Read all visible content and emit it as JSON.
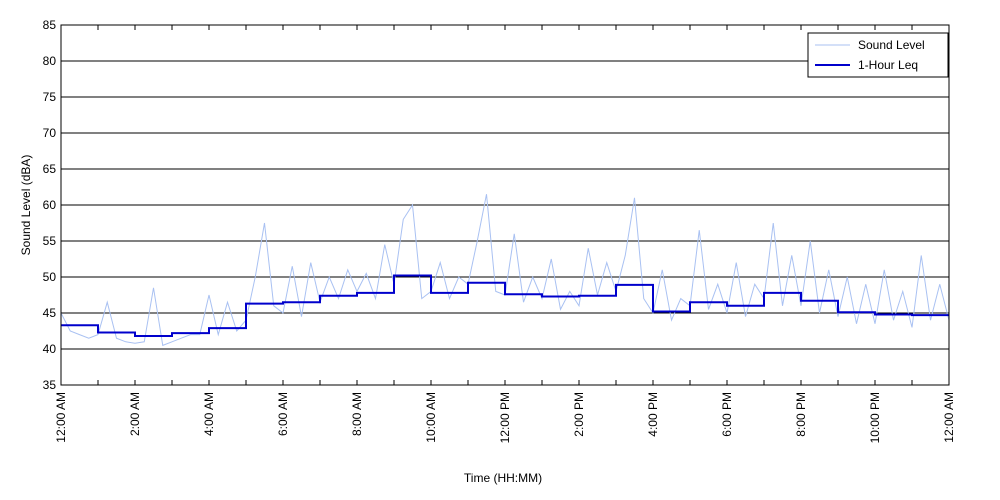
{
  "chart_data": {
    "type": "line",
    "xlabel": "Time (HH:MM)",
    "ylabel": "Sound Level (dBA)",
    "xlim": [
      0,
      24
    ],
    "ylim": [
      35,
      85
    ],
    "xticks": [
      {
        "value": 0,
        "label": "12:00 AM"
      },
      {
        "value": 2,
        "label": "2:00 AM"
      },
      {
        "value": 4,
        "label": "4:00 AM"
      },
      {
        "value": 6,
        "label": "6:00 AM"
      },
      {
        "value": 8,
        "label": "8:00 AM"
      },
      {
        "value": 10,
        "label": "10:00 AM"
      },
      {
        "value": 12,
        "label": "12:00 PM"
      },
      {
        "value": 14,
        "label": "2:00 PM"
      },
      {
        "value": 16,
        "label": "4:00 PM"
      },
      {
        "value": 18,
        "label": "6:00 PM"
      },
      {
        "value": 20,
        "label": "8:00 PM"
      },
      {
        "value": 22,
        "label": "10:00 PM"
      },
      {
        "value": 24,
        "label": "12:00 AM"
      }
    ],
    "x_minor_ticks": [
      1,
      3,
      5,
      7,
      9,
      11,
      13,
      15,
      17,
      19,
      21,
      23
    ],
    "yticks": [
      35,
      40,
      45,
      50,
      55,
      60,
      65,
      70,
      75,
      80,
      85
    ],
    "grid": "y",
    "legend": "upper right",
    "series": [
      {
        "name": "Sound Level",
        "color": "#a9c1f2",
        "width": 1,
        "x": [
          0,
          0.25,
          0.5,
          0.75,
          1,
          1.25,
          1.5,
          1.75,
          2,
          2.25,
          2.5,
          2.75,
          3,
          3.25,
          3.5,
          3.75,
          4,
          4.25,
          4.5,
          4.75,
          5,
          5.25,
          5.5,
          5.75,
          6,
          6.25,
          6.5,
          6.75,
          7,
          7.25,
          7.5,
          7.75,
          8,
          8.25,
          8.5,
          8.75,
          9,
          9.25,
          9.5,
          9.75,
          10,
          10.25,
          10.5,
          10.75,
          11,
          11.25,
          11.5,
          11.75,
          12,
          12.25,
          12.5,
          12.75,
          13,
          13.25,
          13.5,
          13.75,
          14,
          14.25,
          14.5,
          14.75,
          15,
          15.25,
          15.5,
          15.75,
          16,
          16.25,
          16.5,
          16.75,
          17,
          17.25,
          17.5,
          17.75,
          18,
          18.25,
          18.5,
          18.75,
          19,
          19.25,
          19.5,
          19.75,
          20,
          20.25,
          20.5,
          20.75,
          21,
          21.25,
          21.5,
          21.75,
          22,
          22.25,
          22.5,
          22.75,
          23,
          23.25,
          23.5,
          23.75,
          24
        ],
        "values": [
          45,
          42.5,
          42,
          41.5,
          42,
          46.5,
          41.5,
          41,
          40.8,
          41,
          48.5,
          40.5,
          41,
          41.5,
          42,
          42,
          47.5,
          42,
          46.5,
          42.5,
          44,
          50,
          57.5,
          46,
          45,
          51.5,
          44.5,
          52,
          46.5,
          50,
          47,
          51,
          48,
          50.5,
          47,
          54.5,
          49,
          58,
          60,
          47,
          48,
          52,
          47,
          50,
          49,
          55,
          61.5,
          48,
          47.5,
          56,
          46.5,
          50,
          47,
          52.5,
          45.5,
          48,
          46,
          54,
          47.5,
          52,
          48,
          53,
          61,
          47,
          45,
          51,
          44,
          47,
          46,
          56.5,
          45.5,
          49,
          45,
          52,
          44.5,
          49,
          47,
          57.5,
          46,
          53,
          46,
          55,
          45,
          51,
          44.5,
          50,
          43.5,
          49,
          43.5,
          51,
          44,
          48,
          43,
          53,
          44,
          49,
          44
        ]
      },
      {
        "name": "1-Hour Leq",
        "color": "#0000cc",
        "width": 2,
        "drawstyle": "steps-post",
        "x": [
          0,
          1,
          2,
          3,
          4,
          5,
          6,
          7,
          8,
          9,
          10,
          11,
          12,
          13,
          14,
          15,
          16,
          17,
          18,
          19,
          20,
          21,
          22,
          23
        ],
        "values": [
          43.3,
          42.3,
          41.8,
          42.2,
          42.9,
          46.3,
          46.5,
          47.4,
          47.8,
          50.2,
          47.8,
          49.2,
          47.6,
          47.3,
          47.4,
          48.9,
          45.2,
          46.5,
          46.0,
          47.8,
          46.7,
          45.1,
          44.8,
          44.7
        ]
      }
    ]
  }
}
